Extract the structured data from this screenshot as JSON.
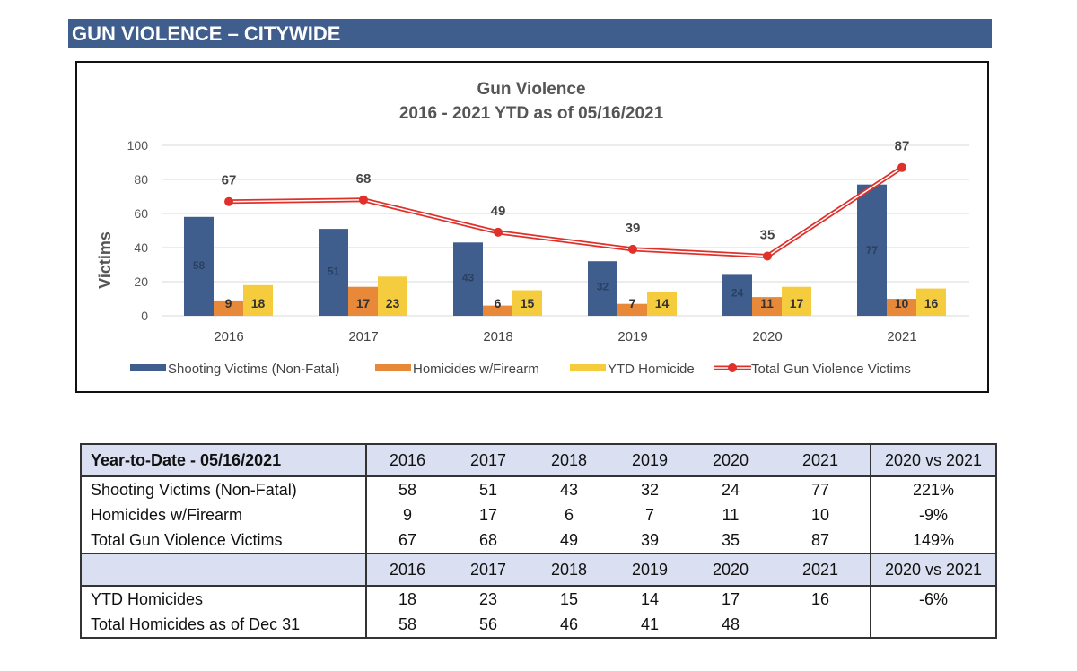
{
  "section_title": "GUN VIOLENCE – CITYWIDE",
  "chart_data": {
    "type": "bar",
    "title": "Gun Violence",
    "subtitle": "2016 - 2021 YTD as of 05/16/2021",
    "ylabel": "Victims",
    "xlabel": "",
    "ylim": [
      0,
      100
    ],
    "yticks": [
      "0",
      "20",
      "40",
      "60",
      "80",
      "100"
    ],
    "categories": [
      "2016",
      "2017",
      "2018",
      "2019",
      "2020",
      "2021"
    ],
    "series": [
      {
        "name": "Shooting Victims (Non-Fatal)",
        "type": "bar",
        "color": "#3f5e8e",
        "values": [
          58,
          51,
          43,
          32,
          24,
          77
        ]
      },
      {
        "name": "Homicides w/Firearm",
        "type": "bar",
        "color": "#e8893a",
        "values": [
          9,
          17,
          6,
          7,
          11,
          10
        ]
      },
      {
        "name": "YTD Homicide",
        "type": "bar",
        "color": "#f4cc3e",
        "values": [
          18,
          23,
          15,
          14,
          17,
          16
        ]
      },
      {
        "name": "Total Gun Violence Victims",
        "type": "line",
        "color": "#e0302a",
        "values": [
          67,
          68,
          49,
          39,
          35,
          87
        ]
      }
    ],
    "grid": true,
    "legend": "bottom"
  },
  "table": {
    "header1": {
      "label": "Year-to-Date - 05/16/2021",
      "years": [
        "2016",
        "2017",
        "2018",
        "2019",
        "2020",
        "2021"
      ],
      "compare": "2020 vs 2021"
    },
    "rows1": [
      {
        "label": "Shooting Victims (Non-Fatal)",
        "values": [
          "58",
          "51",
          "43",
          "32",
          "24",
          "77"
        ],
        "compare": "221%"
      },
      {
        "label": "Homicides w/Firearm",
        "values": [
          "9",
          "17",
          "6",
          "7",
          "11",
          "10"
        ],
        "compare": "-9%"
      },
      {
        "label": "Total Gun Violence Victims",
        "values": [
          "67",
          "68",
          "49",
          "39",
          "35",
          "87"
        ],
        "compare": "149%"
      }
    ],
    "header2": {
      "label": "",
      "years": [
        "2016",
        "2017",
        "2018",
        "2019",
        "2020",
        "2021"
      ],
      "compare": "2020 vs 2021"
    },
    "rows2": [
      {
        "label": "YTD Homicides",
        "values": [
          "18",
          "23",
          "15",
          "14",
          "17",
          "16"
        ],
        "compare": "-6%"
      },
      {
        "label": "Total Homicides as of Dec 31",
        "values": [
          "58",
          "56",
          "46",
          "41",
          "48",
          ""
        ],
        "compare": ""
      }
    ]
  }
}
